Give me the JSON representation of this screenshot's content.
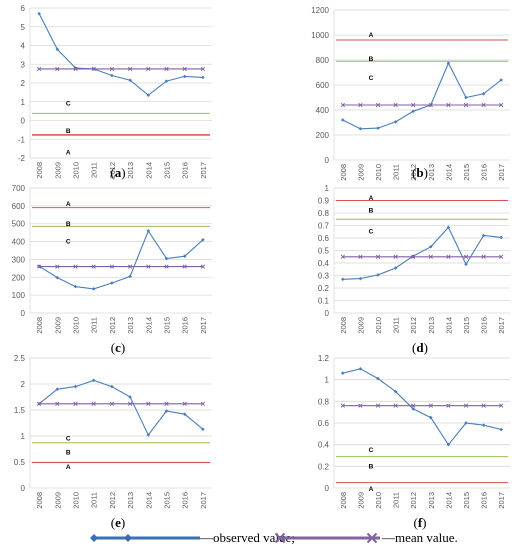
{
  "legend": {
    "observed_label": "—observed value;",
    "mean_label": "—mean value."
  },
  "colors": {
    "observed": "#4a7ebb",
    "mean": "#7f5fa8",
    "line_A": "#d9524f",
    "line_B": "#9bbb59",
    "line_C": "#9bbb59",
    "grid": "#d9d9d9",
    "legend_observed": "#3a6fb0",
    "legend_mean": "#8064a2"
  },
  "chart_data": [
    {
      "type": "line",
      "caption": "(a)",
      "categories": [
        "2008",
        "2009",
        "2010",
        "2011",
        "2012",
        "2013",
        "2014",
        "2015",
        "2016",
        "2017"
      ],
      "ylim": [
        -2,
        6
      ],
      "yticks": [
        -2,
        -1,
        0,
        1,
        2,
        3,
        4,
        5,
        6
      ],
      "series": [
        {
          "name": "observed",
          "values": [
            5.7,
            3.8,
            2.8,
            2.75,
            2.4,
            2.15,
            1.35,
            2.1,
            2.35,
            2.3
          ]
        },
        {
          "name": "mean",
          "values": [
            2.75,
            2.75,
            2.75,
            2.75,
            2.75,
            2.75,
            2.75,
            2.75,
            2.75,
            2.75
          ]
        }
      ],
      "threshold_lines": [
        {
          "label": "A",
          "value": -0.75,
          "color": "#d9524f"
        },
        {
          "label": "B",
          "value": -0.8,
          "color": "#9bbb59"
        },
        {
          "label": "C",
          "value": 0.38,
          "color": "#9bbb59"
        }
      ],
      "letters": [
        {
          "text": "C",
          "value": 0.95
        },
        {
          "text": "B",
          "value": -0.5
        },
        {
          "text": "A",
          "value": -1.65
        }
      ]
    },
    {
      "type": "line",
      "caption": "(b)",
      "categories": [
        "2008",
        "2009",
        "2010",
        "2011",
        "2012",
        "2013",
        "2014",
        "2015",
        "2016",
        "2017"
      ],
      "ylim": [
        0,
        1200
      ],
      "yticks": [
        0,
        200,
        400,
        600,
        800,
        1000,
        1200
      ],
      "series": [
        {
          "name": "observed",
          "values": [
            320,
            250,
            255,
            305,
            390,
            440,
            775,
            500,
            530,
            640
          ]
        },
        {
          "name": "mean",
          "values": [
            440,
            440,
            440,
            440,
            440,
            440,
            440,
            440,
            440,
            440
          ]
        }
      ],
      "threshold_lines": [
        {
          "label": "A",
          "value": 960,
          "color": "#d9524f"
        },
        {
          "label": "B",
          "value": 790,
          "color": "#9bbb59"
        }
      ],
      "letters": [
        {
          "text": "A",
          "value": 1010
        },
        {
          "text": "B",
          "value": 815
        },
        {
          "text": "C",
          "value": 665
        }
      ]
    },
    {
      "type": "line",
      "caption": "(c)",
      "categories": [
        "2008",
        "2009",
        "2010",
        "2011",
        "2012",
        "2013",
        "2014",
        "2015",
        "2016",
        "2017"
      ],
      "ylim": [
        0,
        700
      ],
      "yticks": [
        0,
        100,
        200,
        300,
        400,
        500,
        600,
        700
      ],
      "series": [
        {
          "name": "observed",
          "values": [
            262,
            198,
            148,
            135,
            168,
            205,
            460,
            305,
            318,
            410
          ]
        },
        {
          "name": "mean",
          "values": [
            260,
            260,
            260,
            260,
            260,
            260,
            260,
            260,
            260,
            260
          ]
        }
      ],
      "threshold_lines": [
        {
          "label": "A",
          "value": 590,
          "color": "#d9524f"
        },
        {
          "label": "B",
          "value": 485,
          "color": "#9bbb59"
        }
      ],
      "letters": [
        {
          "text": "A",
          "value": 615
        },
        {
          "text": "B",
          "value": 505
        },
        {
          "text": "C",
          "value": 405
        }
      ]
    },
    {
      "type": "line",
      "caption": "(d)",
      "categories": [
        "2008",
        "2009",
        "2010",
        "2011",
        "2012",
        "2013",
        "2014",
        "2015",
        "2016",
        "2017"
      ],
      "ylim": [
        0,
        1
      ],
      "yticks": [
        0,
        0.1,
        0.2,
        0.3,
        0.4,
        0.5,
        0.6,
        0.7,
        0.8,
        0.9,
        1
      ],
      "series": [
        {
          "name": "observed",
          "values": [
            0.27,
            0.275,
            0.305,
            0.36,
            0.455,
            0.53,
            0.685,
            0.39,
            0.62,
            0.605
          ]
        },
        {
          "name": "mean",
          "values": [
            0.45,
            0.45,
            0.45,
            0.45,
            0.45,
            0.45,
            0.45,
            0.45,
            0.45,
            0.45
          ]
        }
      ],
      "threshold_lines": [
        {
          "label": "A",
          "value": 0.9,
          "color": "#d9524f"
        },
        {
          "label": "B",
          "value": 0.75,
          "color": "#9bbb59"
        }
      ],
      "letters": [
        {
          "text": "A",
          "value": 0.93
        },
        {
          "text": "B",
          "value": 0.83
        },
        {
          "text": "C",
          "value": 0.66
        }
      ]
    },
    {
      "type": "line",
      "caption": "(e)",
      "categories": [
        "2008",
        "2009",
        "2010",
        "2011",
        "2012",
        "2013",
        "2014",
        "2015",
        "2016",
        "2017"
      ],
      "ylim": [
        0,
        2.5
      ],
      "yticks": [
        0,
        0.5,
        1,
        1.5,
        2,
        2.5
      ],
      "series": [
        {
          "name": "observed",
          "values": [
            1.62,
            1.9,
            1.95,
            2.07,
            1.95,
            1.75,
            1.02,
            1.48,
            1.42,
            1.13
          ]
        },
        {
          "name": "mean",
          "values": [
            1.62,
            1.62,
            1.62,
            1.62,
            1.62,
            1.62,
            1.62,
            1.62,
            1.62,
            1.62
          ]
        }
      ],
      "threshold_lines": [
        {
          "label": "B",
          "value": 0.87,
          "color": "#9bbb59"
        },
        {
          "label": "A",
          "value": 0.49,
          "color": "#d9524f"
        }
      ],
      "letters": [
        {
          "text": "C",
          "value": 0.97
        },
        {
          "text": "B",
          "value": 0.7
        },
        {
          "text": "A",
          "value": 0.42
        }
      ]
    },
    {
      "type": "line",
      "caption": "(f)",
      "categories": [
        "2008",
        "2009",
        "2010",
        "2011",
        "2012",
        "2013",
        "2014",
        "2015",
        "2016",
        "2017"
      ],
      "ylim": [
        0,
        1.2
      ],
      "yticks": [
        0,
        0.2,
        0.4,
        0.6,
        0.8,
        1,
        1.2
      ],
      "series": [
        {
          "name": "observed",
          "values": [
            1.06,
            1.1,
            1.01,
            0.89,
            0.73,
            0.65,
            0.4,
            0.6,
            0.58,
            0.54
          ]
        },
        {
          "name": "mean",
          "values": [
            0.76,
            0.76,
            0.76,
            0.76,
            0.76,
            0.76,
            0.76,
            0.76,
            0.76,
            0.76
          ]
        }
      ],
      "threshold_lines": [
        {
          "label": "B",
          "value": 0.29,
          "color": "#9bbb59"
        },
        {
          "label": "A",
          "value": 0.05,
          "color": "#d9524f"
        }
      ],
      "letters": [
        {
          "text": "C",
          "value": 0.36
        },
        {
          "text": "B",
          "value": 0.21
        },
        {
          "text": "A",
          "value": 0.0
        }
      ]
    }
  ]
}
